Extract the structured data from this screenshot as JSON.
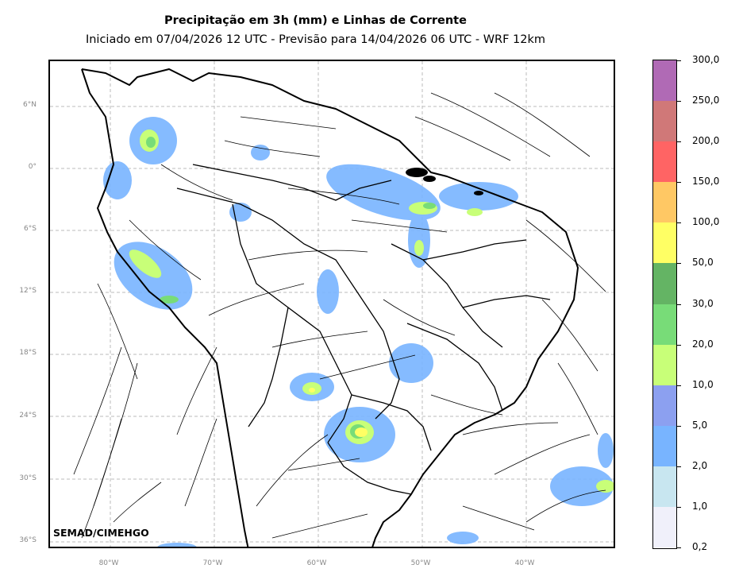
{
  "title": "Precipitação em 3h (mm) e Linhas de Corrente",
  "subtitle": "Iniciado em 07/04/2026 12 UTC - Previsão para 14/04/2026 06 UTC - WRF 12km",
  "credit": "SEMAD/CIMEHGO",
  "lat_labels": [
    "6°N",
    "0°",
    "6°S",
    "12°S",
    "18°S",
    "24°S",
    "30°S",
    "36°S"
  ],
  "lon_labels": [
    "80°W",
    "70°W",
    "60°W",
    "50°W",
    "40°W"
  ],
  "colorbar": {
    "labels": [
      "300,0",
      "250,0",
      "200,0",
      "150,0",
      "100,0",
      "50,0",
      "30,0",
      "20,0",
      "10,0",
      "5,0",
      "2,0",
      "1,0",
      "0,2"
    ],
    "colors": [
      "#b06ab5",
      "#d07878",
      "#ff6464",
      "#ffc864",
      "#ffff64",
      "#64b464",
      "#78dc78",
      "#c8ff78",
      "#8ca0f0",
      "#78b4ff",
      "#c8e6f0",
      "#f0f0fa"
    ]
  }
}
